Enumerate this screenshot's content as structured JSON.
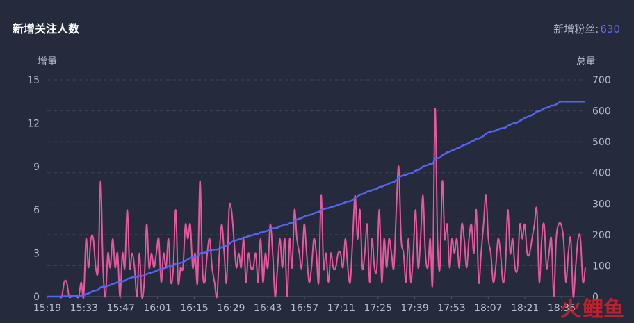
{
  "header": {
    "title": "新增关注人数",
    "fans_label": "新增粉丝:",
    "fans_value": "630"
  },
  "watermark": {
    "text": "火鲤鱼"
  },
  "colors": {
    "background": "#252a3d",
    "increment_line": "#e5579f",
    "total_line": "#5466f0",
    "grid": "#3d4358",
    "text": "#b8bdcd"
  },
  "chart_data": {
    "type": "line",
    "title": "新增关注人数",
    "left_axis_label": "增量",
    "right_axis_label": "总量",
    "ylim_left": [
      0,
      15
    ],
    "ylim_right": [
      0,
      700
    ],
    "y_ticks_left": [
      0,
      3,
      6,
      9,
      12,
      15
    ],
    "y_ticks_right": [
      0,
      100,
      200,
      300,
      400,
      500,
      600,
      700
    ],
    "x_tick_labels": [
      "15:19",
      "15:33",
      "15:47",
      "16:01",
      "16:15",
      "16:29",
      "16:43",
      "16:57",
      "17:11",
      "17:25",
      "17:39",
      "17:53",
      "18:07",
      "18:21",
      "18:35"
    ],
    "x_start": "15:19",
    "x_end": "18:44",
    "grid": true,
    "series": [
      {
        "name": "增量",
        "axis": "left",
        "values": [
          0,
          0,
          0,
          0,
          0,
          0,
          0,
          1,
          1,
          0,
          0,
          0,
          0,
          0,
          1,
          0,
          4,
          2,
          4,
          4,
          2,
          2,
          8,
          2,
          0,
          3,
          2,
          4,
          2,
          3,
          0,
          3,
          2,
          6,
          2,
          3,
          2,
          0,
          3,
          0,
          1,
          5,
          2,
          3,
          2,
          3,
          4,
          1,
          3,
          2,
          4,
          1,
          2,
          6,
          1,
          2,
          2,
          5,
          4,
          5,
          2,
          3,
          1,
          8,
          2,
          1,
          3,
          4,
          2,
          1,
          0,
          3,
          5,
          3,
          1,
          6,
          6,
          4,
          2,
          3,
          2,
          4,
          1,
          3,
          2,
          2,
          3,
          1,
          4,
          1,
          3,
          2,
          5,
          3,
          0,
          2,
          4,
          2,
          4,
          0,
          4,
          2,
          6,
          4,
          3,
          2,
          5,
          3,
          1,
          2,
          4,
          3,
          1,
          7,
          2,
          3,
          1,
          3,
          2,
          2,
          3,
          3,
          2,
          4,
          2,
          1,
          4,
          7,
          4,
          6,
          2,
          3,
          5,
          1,
          4,
          2,
          2,
          6,
          1,
          4,
          2,
          4,
          3,
          2,
          6,
          9,
          4,
          3,
          1,
          4,
          1,
          3,
          6,
          2,
          4,
          7,
          3,
          2,
          4,
          1,
          13,
          4,
          2,
          8,
          4,
          5,
          2,
          4,
          3,
          4,
          2,
          5,
          4,
          2,
          4,
          5,
          3,
          6,
          1,
          3,
          5,
          7,
          4,
          3,
          1,
          2,
          4,
          3,
          1,
          2,
          6,
          3,
          4,
          2,
          2,
          5,
          4,
          5,
          3,
          3,
          4,
          5,
          6,
          1,
          4,
          5,
          2,
          3,
          4,
          0,
          4,
          5,
          5,
          4,
          1,
          3,
          4,
          0,
          2,
          4,
          4,
          1,
          2
        ]
      },
      {
        "name": "总量",
        "axis": "right",
        "values": [
          0,
          0,
          0,
          0,
          0,
          0,
          0,
          1,
          1,
          2,
          2,
          2,
          2,
          3,
          3,
          4,
          8,
          10,
          14,
          18,
          20,
          22,
          30,
          32,
          32,
          35,
          37,
          41,
          43,
          46,
          46,
          49,
          51,
          57,
          59,
          62,
          64,
          64,
          67,
          67,
          68,
          73,
          75,
          78,
          80,
          83,
          87,
          88,
          91,
          93,
          97,
          98,
          100,
          106,
          107,
          109,
          111,
          116,
          120,
          125,
          127,
          130,
          131,
          139,
          141,
          142,
          145,
          149,
          151,
          152,
          152,
          155,
          160,
          163,
          164,
          170,
          176,
          180,
          182,
          185,
          187,
          191,
          192,
          195,
          197,
          199,
          202,
          203,
          207,
          208,
          211,
          213,
          218,
          221,
          221,
          223,
          227,
          229,
          233,
          233,
          237,
          239,
          245,
          249,
          252,
          254,
          259,
          262,
          263,
          265,
          269,
          272,
          273,
          280,
          282,
          285,
          286,
          289,
          291,
          293,
          296,
          299,
          301,
          305,
          307,
          308,
          312,
          319,
          323,
          329,
          331,
          334,
          339,
          340,
          344,
          346,
          348,
          354,
          355,
          359,
          361,
          365,
          368,
          370,
          376,
          385,
          389,
          392,
          393,
          397,
          398,
          401,
          407,
          409,
          413,
          420,
          423,
          425,
          429,
          430,
          443,
          447,
          449,
          457,
          461,
          466,
          468,
          472,
          475,
          479,
          481,
          486,
          490,
          492,
          496,
          501,
          504,
          510,
          511,
          514,
          519,
          526,
          530,
          533,
          534,
          536,
          540,
          543,
          544,
          546,
          552,
          555,
          559,
          561,
          563,
          568,
          572,
          577,
          580,
          583,
          587,
          592,
          598,
          599,
          603,
          608,
          610,
          613,
          617,
          617,
          621,
          626,
          630,
          630,
          630,
          630,
          630,
          630,
          630,
          630,
          630,
          630,
          630
        ]
      }
    ]
  }
}
